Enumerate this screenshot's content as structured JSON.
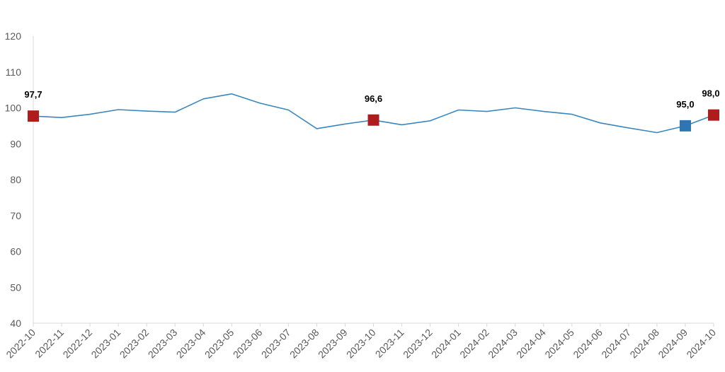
{
  "chart_data": {
    "type": "line",
    "title": "",
    "xlabel": "",
    "ylabel": "",
    "ylim": [
      40,
      120
    ],
    "yticks": [
      40,
      50,
      60,
      70,
      80,
      90,
      100,
      110,
      120
    ],
    "grid": false,
    "categories": [
      "2022-10",
      "2022-11",
      "2022-12",
      "2023-01",
      "2023-02",
      "2023-03",
      "2023-04",
      "2023-05",
      "2023-06",
      "2023-07",
      "2023-08",
      "2023-09",
      "2023-10",
      "2023-11",
      "2023-12",
      "2024-01",
      "2024-02",
      "2024-03",
      "2024-04",
      "2024-05",
      "2024-06",
      "2024-07",
      "2024-08",
      "2024-09",
      "2024-10"
    ],
    "series": [
      {
        "values": [
          97.7,
          97.3,
          98.2,
          99.5,
          99.1,
          98.8,
          102.5,
          103.9,
          101.3,
          99.4,
          94.2,
          95.5,
          96.6,
          95.3,
          96.4,
          99.4,
          99.0,
          100.0,
          99.0,
          98.2,
          95.8,
          94.4,
          93.1,
          95.0,
          98.0
        ],
        "color": "#3a87c0"
      }
    ],
    "markers": [
      {
        "index": 0,
        "label": "97,7",
        "color": "#b01c1c"
      },
      {
        "index": 12,
        "label": "96,6",
        "color": "#b01c1c"
      },
      {
        "index": 23,
        "label": "95,0",
        "color": "#2e75b6"
      },
      {
        "index": 24,
        "label": "98,0",
        "color": "#b01c1c"
      }
    ]
  }
}
